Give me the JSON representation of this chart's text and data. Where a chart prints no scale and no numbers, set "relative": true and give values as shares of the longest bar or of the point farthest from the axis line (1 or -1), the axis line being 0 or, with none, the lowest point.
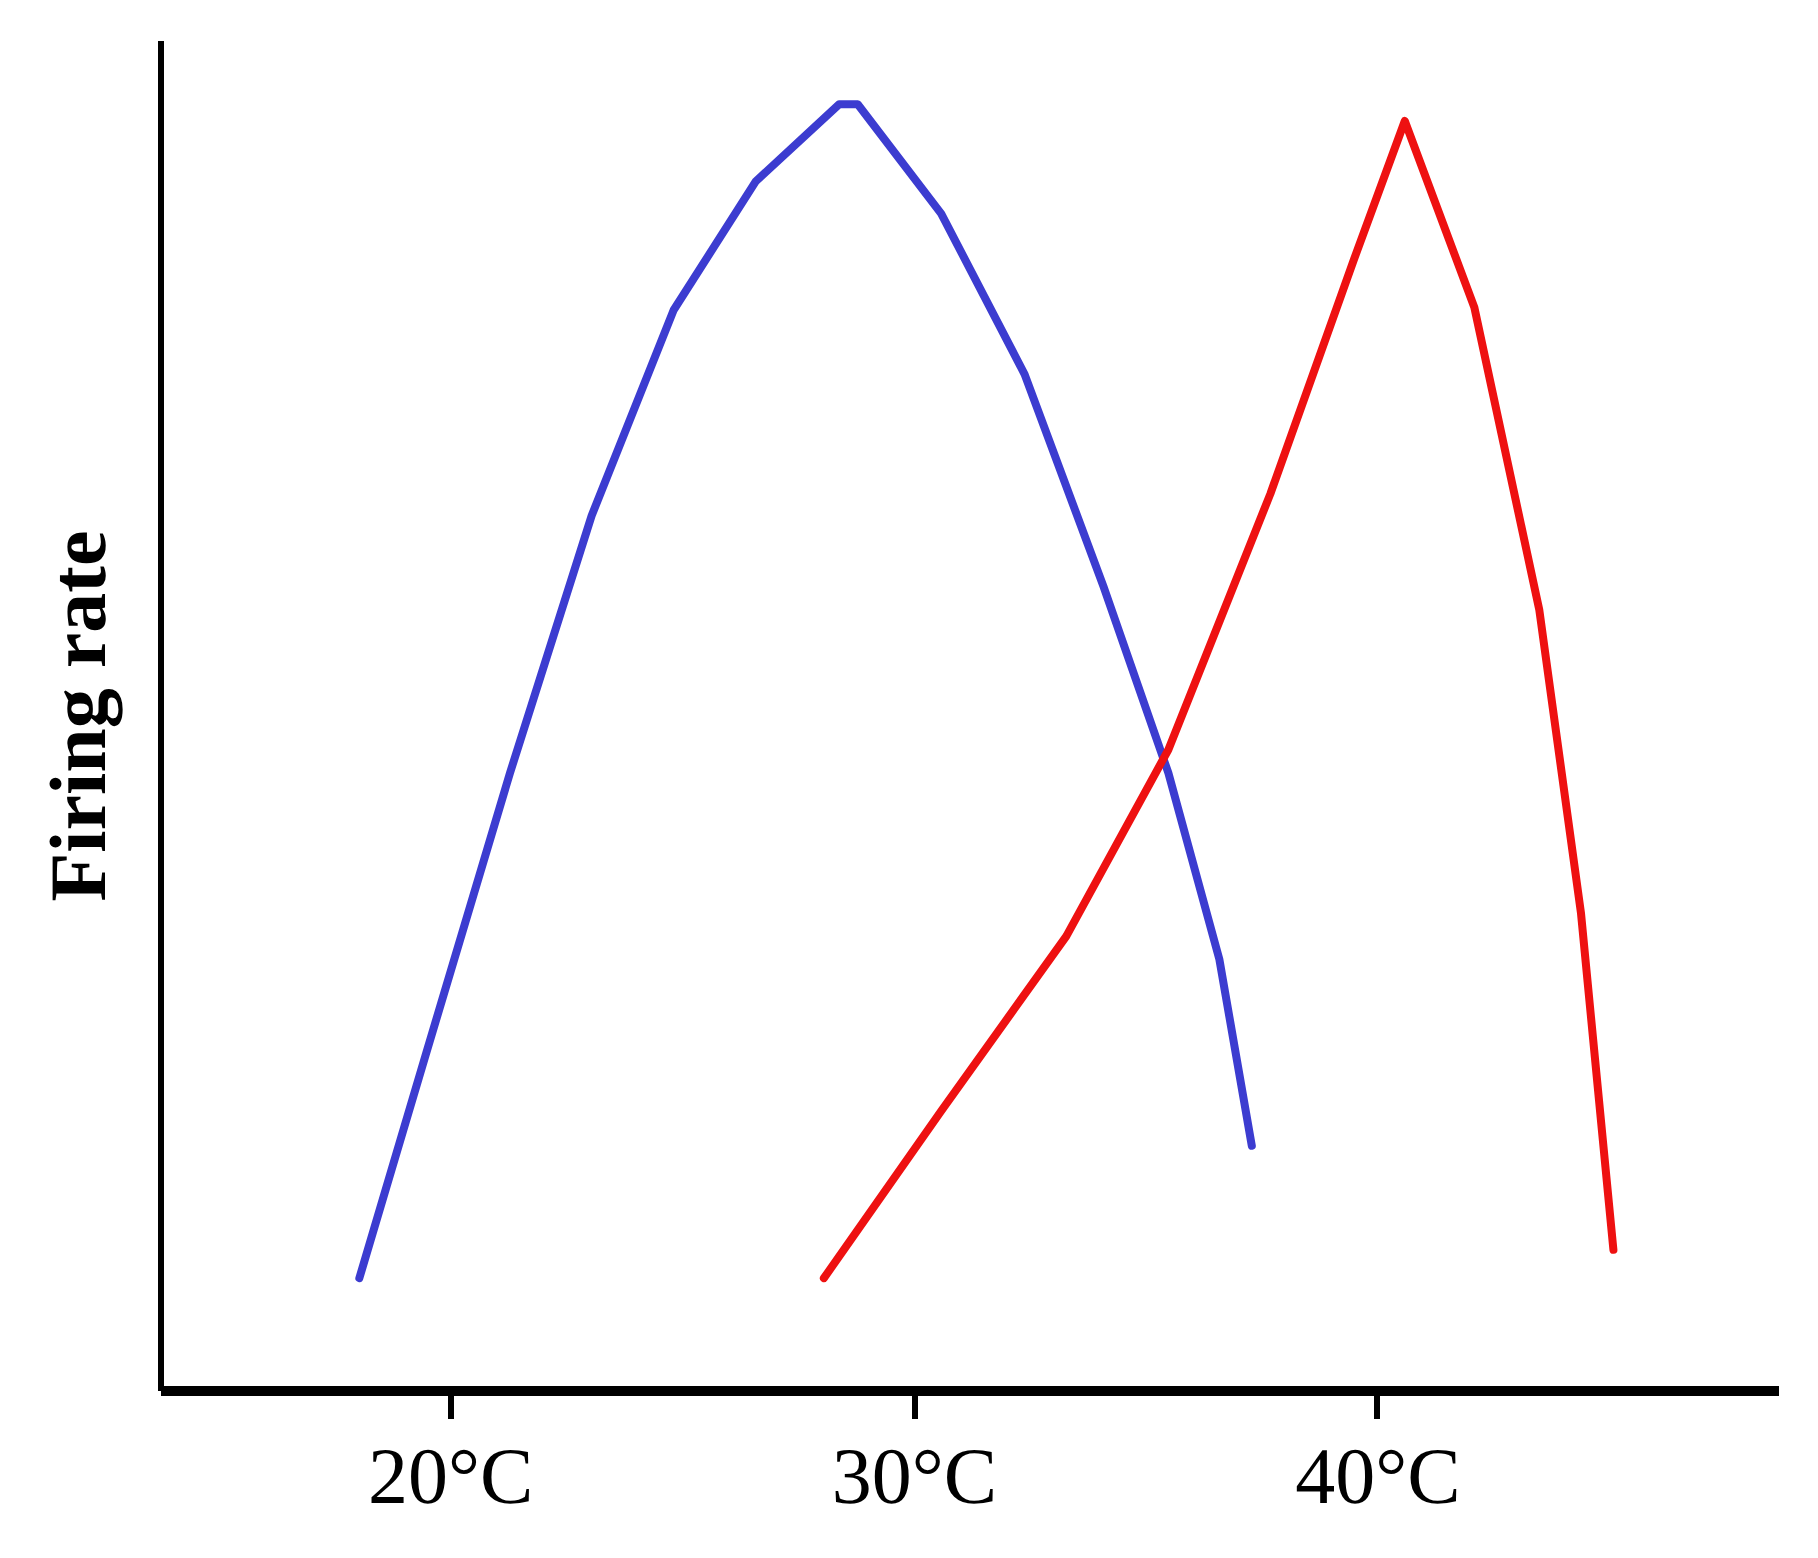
{
  "chart_data": {
    "type": "line",
    "relative": true,
    "ylabel": "Firing rate",
    "xlim": [
      13.75,
      48.65
    ],
    "xticks": [
      {
        "value": 20,
        "label": "20°C"
      },
      {
        "value": 30,
        "label": "30°C"
      },
      {
        "value": 40,
        "label": "40°C"
      }
    ],
    "grid": false,
    "marker": "none",
    "line_style": "solid",
    "series": [
      {
        "color": "#3c3cd0",
        "x": [
          18.05,
          19.5,
          21.3,
          23.06,
          24.83,
          26.6,
          28.4,
          28.8,
          30.6,
          32.4,
          34.1,
          35.5,
          36.6,
          37.3
        ],
        "values": [
          0.087,
          0.263,
          0.48,
          0.68,
          0.84,
          0.94,
          1.0,
          1.0,
          0.915,
          0.79,
          0.625,
          0.48,
          0.335,
          0.19
        ]
      },
      {
        "color": "#ee1111",
        "x": [
          28.07,
          30.6,
          33.3,
          35.5,
          37.7,
          39.5,
          40.6,
          42.1,
          43.5,
          44.4,
          45.1
        ],
        "values": [
          0.087,
          0.217,
          0.353,
          0.498,
          0.697,
          0.879,
          0.987,
          0.842,
          0.607,
          0.371,
          0.109
        ]
      }
    ]
  }
}
